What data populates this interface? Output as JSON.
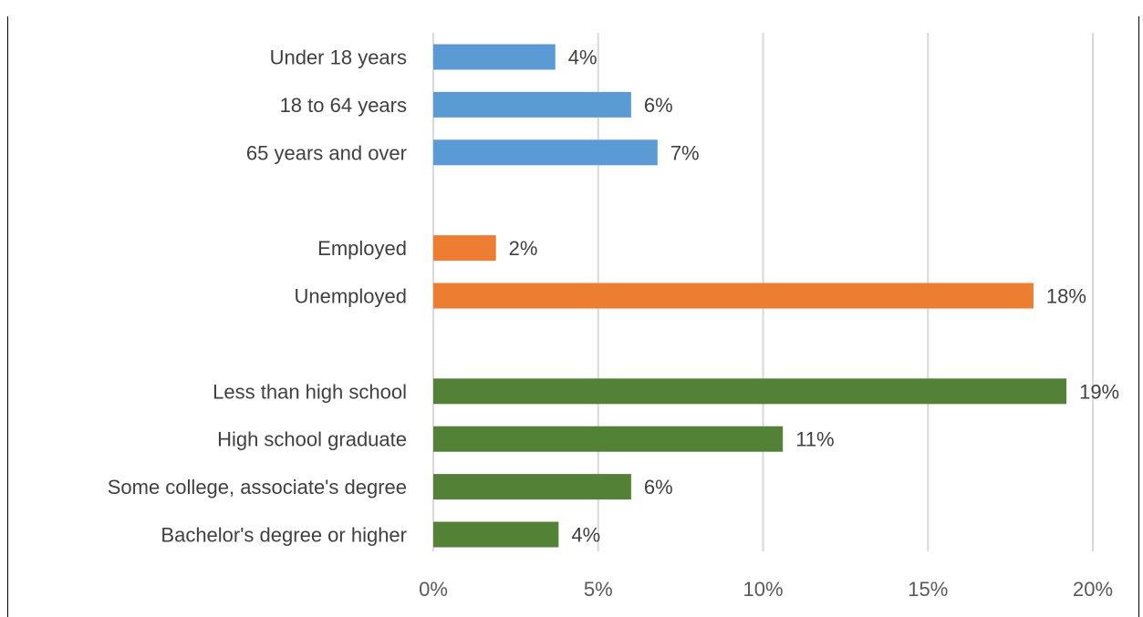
{
  "chart_data": {
    "type": "bar",
    "orientation": "horizontal",
    "title": "",
    "xlabel": "",
    "ylabel": "",
    "xlim": [
      0,
      20
    ],
    "x_ticks": [
      "0%",
      "5%",
      "10%",
      "15%",
      "20%"
    ],
    "grid": "vertical gridlines",
    "legend": "none",
    "groups": [
      {
        "color": "#5B9BD5",
        "categories": [
          "Under 18 years",
          "18 to 64 years",
          "65 years and over"
        ],
        "values": [
          3.7,
          6.0,
          6.8
        ],
        "labels": [
          "4%",
          "6%",
          "7%"
        ]
      },
      {
        "color": "#ED7D31",
        "categories": [
          "Employed",
          "Unemployed"
        ],
        "values": [
          1.9,
          18.2
        ],
        "labels": [
          "2%",
          "18%"
        ]
      },
      {
        "color": "#538135",
        "categories": [
          "Less than high school",
          "High school graduate",
          "Some college, associate's degree",
          "Bachelor's degree or higher"
        ],
        "values": [
          19.2,
          10.6,
          6.0,
          3.8
        ],
        "labels": [
          "19%",
          "11%",
          "6%",
          "4%"
        ]
      }
    ]
  }
}
